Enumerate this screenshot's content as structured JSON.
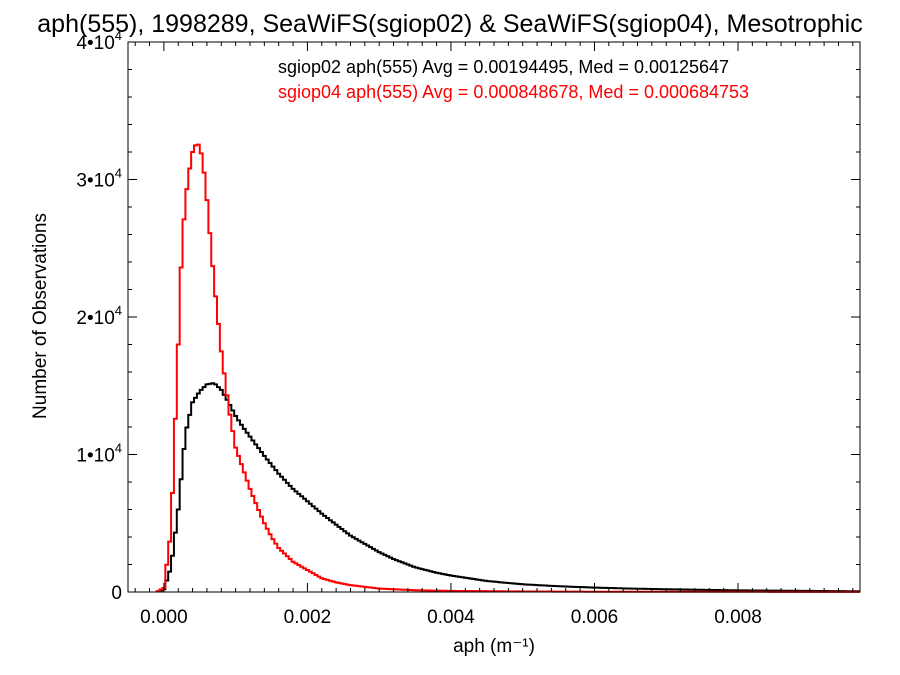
{
  "chart_data": {
    "type": "line",
    "title": "aph(555), 1998289, SeaWiFS(sgiop02) & SeaWiFS(sgiop04), Mesotrophic",
    "xlabel": "aph (m⁻¹)",
    "ylabel": "Number of Observations",
    "xlim": [
      -0.0005,
      0.0097
    ],
    "ylim": [
      0,
      40000
    ],
    "x_ticks": [
      0.0,
      0.002,
      0.004,
      0.006,
      0.008
    ],
    "x_tick_labels": [
      "0.000",
      "0.002",
      "0.004",
      "0.006",
      "0.008"
    ],
    "y_ticks": [
      0,
      10000,
      20000,
      30000,
      40000
    ],
    "y_tick_labels": [
      {
        "mantissa": "0",
        "exp": ""
      },
      {
        "mantissa": "1•10",
        "exp": "4"
      },
      {
        "mantissa": "2•10",
        "exp": "4"
      },
      {
        "mantissa": "3•10",
        "exp": "4"
      },
      {
        "mantissa": "4•10",
        "exp": "4"
      }
    ],
    "annotations": [
      {
        "text": "sgiop02 aph(555) Avg = 0.00194495, Med = 0.00125647",
        "color": "#000000"
      },
      {
        "text": "sgiop04 aph(555) Avg = 0.000848678, Med = 0.000684753",
        "color": "#ff0000"
      }
    ],
    "series": [
      {
        "color": "#000000",
        "x": [
          -0.0001,
          0.0,
          0.0001,
          0.0002,
          0.0003,
          0.0004,
          0.0005,
          0.0006,
          0.0007,
          0.0008,
          0.0009,
          0.001,
          0.0011,
          0.0012,
          0.0014,
          0.0016,
          0.0018,
          0.002,
          0.0022,
          0.0024,
          0.0026,
          0.0028,
          0.003,
          0.0032,
          0.0035,
          0.0038,
          0.004,
          0.0045,
          0.005,
          0.0055,
          0.006,
          0.0065,
          0.007,
          0.0075,
          0.008,
          0.0085,
          0.009,
          0.0097
        ],
        "y": [
          0,
          200,
          1800,
          6000,
          11500,
          13800,
          14600,
          15100,
          15200,
          14700,
          13800,
          12800,
          12000,
          11300,
          9900,
          8600,
          7500,
          6600,
          5700,
          4900,
          4100,
          3500,
          2900,
          2400,
          1800,
          1400,
          1200,
          800,
          560,
          420,
          320,
          250,
          200,
          160,
          120,
          100,
          80,
          50
        ]
      },
      {
        "color": "#ff0000",
        "x": [
          -0.0001,
          0.0,
          0.0001,
          0.0002,
          0.00025,
          0.0003,
          0.00035,
          0.0004,
          0.00045,
          0.0005,
          0.00055,
          0.0006,
          0.0007,
          0.0008,
          0.0009,
          0.001,
          0.0011,
          0.0012,
          0.0013,
          0.0014,
          0.0015,
          0.0016,
          0.0018,
          0.002,
          0.0022,
          0.0024,
          0.0026,
          0.003,
          0.0035,
          0.004,
          0.005,
          0.006,
          0.0097
        ],
        "y": [
          0,
          300,
          4500,
          18000,
          25000,
          28500,
          30500,
          32000,
          32600,
          32500,
          31000,
          28500,
          22500,
          17500,
          13500,
          10500,
          9000,
          7500,
          6200,
          5000,
          4000,
          3200,
          2200,
          1600,
          1000,
          700,
          500,
          250,
          130,
          80,
          40,
          20,
          10
        ]
      }
    ]
  }
}
